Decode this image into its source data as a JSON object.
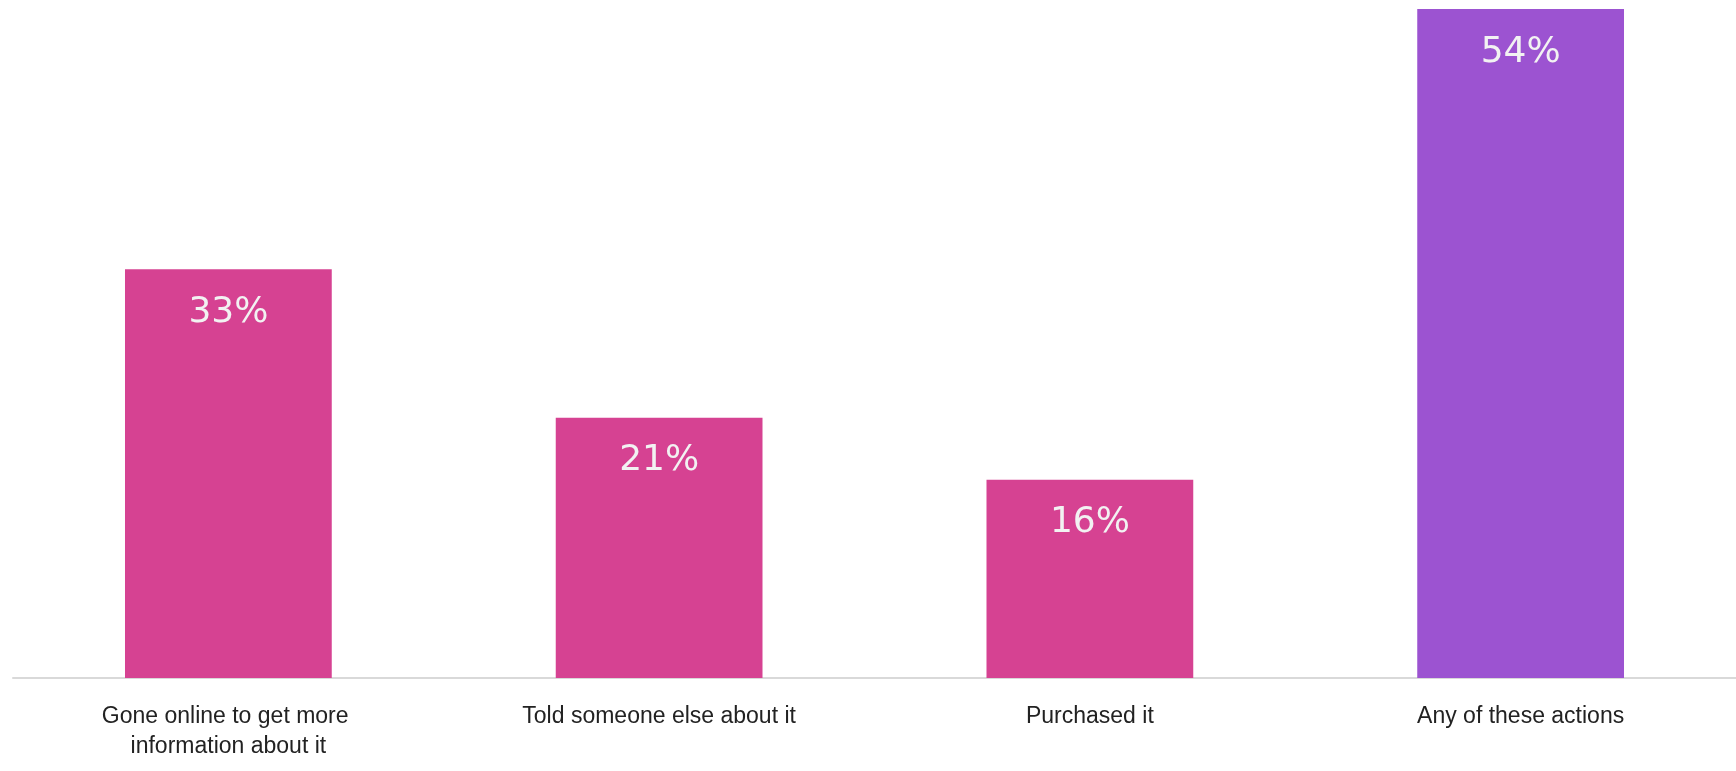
{
  "chart_data": {
    "type": "bar",
    "categories": [
      "Gone online to get more information about it",
      "Told someone else about it",
      "Purchased it",
      "Any of these actions"
    ],
    "values": [
      33,
      21,
      16,
      54
    ],
    "colors": [
      "#d64292",
      "#d64292",
      "#d64292",
      "#9c53d1"
    ],
    "value_labels": [
      "33%",
      "21%",
      "16%",
      "54%"
    ],
    "grid": false
  }
}
